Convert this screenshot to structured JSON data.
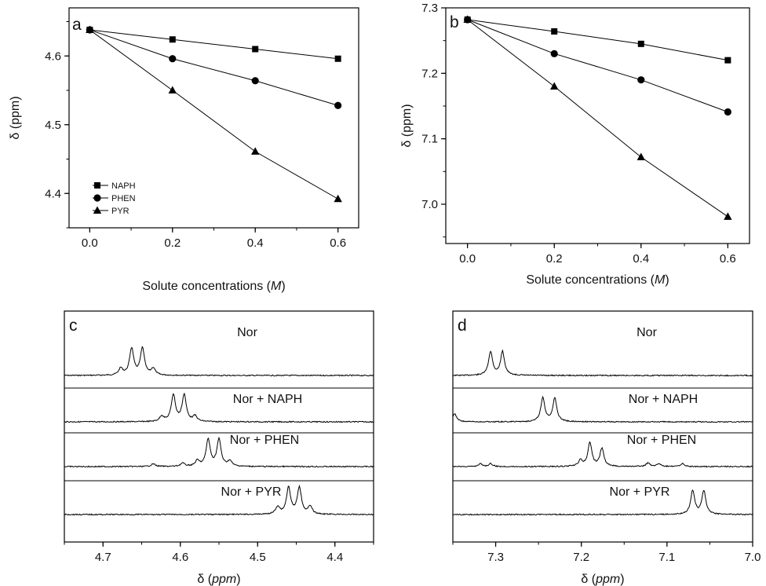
{
  "chart_data": [
    {
      "panel": "a",
      "type": "line",
      "xlabel": "Solute concentrations (M)",
      "ylabel": "δ (ppm)",
      "xlim": [
        -0.05,
        0.65
      ],
      "ylim": [
        4.35,
        4.67
      ],
      "x_ticks": [
        0.0,
        0.2,
        0.4,
        0.6
      ],
      "y_ticks": [
        4.4,
        4.5,
        4.6
      ],
      "x_tick_labels": [
        "0.0",
        "0.2",
        "0.4",
        "0.6"
      ],
      "y_tick_labels": [
        "4.4",
        "4.5",
        "4.6"
      ],
      "legend": "upper-left-middle",
      "x": [
        0.0,
        0.2,
        0.4,
        0.6
      ],
      "series": [
        {
          "name": "NAPH",
          "marker": "square",
          "values": [
            4.638,
            4.624,
            4.61,
            4.596
          ]
        },
        {
          "name": "PHEN",
          "marker": "circle",
          "values": [
            4.638,
            4.596,
            4.564,
            4.528
          ]
        },
        {
          "name": "PYR",
          "marker": "triangle",
          "values": [
            4.638,
            4.55,
            4.461,
            4.392
          ]
        }
      ]
    },
    {
      "panel": "b",
      "type": "line",
      "xlabel": "Solute concentrations (M)",
      "ylabel": "δ (ppm)",
      "xlim": [
        -0.05,
        0.65
      ],
      "ylim": [
        6.94,
        7.3
      ],
      "x_ticks": [
        0.0,
        0.2,
        0.4,
        0.6
      ],
      "y_ticks": [
        7.0,
        7.1,
        7.2,
        7.3
      ],
      "x_tick_labels": [
        "0.0",
        "0.2",
        "0.4",
        "0.6"
      ],
      "y_tick_labels": [
        "7.0",
        "7.1",
        "7.2",
        "7.3"
      ],
      "x": [
        0.0,
        0.2,
        0.4,
        0.6
      ],
      "series": [
        {
          "marker": "square",
          "values": [
            7.282,
            7.264,
            7.245,
            7.22
          ]
        },
        {
          "marker": "circle",
          "values": [
            7.282,
            7.23,
            7.19,
            7.141
          ]
        },
        {
          "marker": "triangle",
          "values": [
            7.282,
            7.18,
            7.072,
            6.981
          ]
        }
      ]
    },
    {
      "panel": "c",
      "type": "spectrum",
      "xlabel": "δ (ppm)",
      "xlim": [
        4.75,
        4.35
      ],
      "x_ticks": [
        4.7,
        4.6,
        4.5,
        4.4
      ],
      "x_tick_labels": [
        "4.7",
        "4.6",
        "4.5",
        "4.4"
      ],
      "traces": [
        {
          "label": "Nor",
          "peaks": [
            {
              "ppm": 4.677,
              "h": 0.25
            },
            {
              "ppm": 4.663,
              "h": 1.0
            },
            {
              "ppm": 4.649,
              "h": 1.0
            },
            {
              "ppm": 4.635,
              "h": 0.25
            }
          ]
        },
        {
          "label": "Nor + NAPH",
          "peaks": [
            {
              "ppm": 4.624,
              "h": 0.2
            },
            {
              "ppm": 4.609,
              "h": 1.0
            },
            {
              "ppm": 4.595,
              "h": 1.0
            },
            {
              "ppm": 4.581,
              "h": 0.2
            }
          ]
        },
        {
          "label": "Nor + PHEN",
          "peaks": [
            {
              "ppm": 4.635,
              "h": 0.1
            },
            {
              "ppm": 4.597,
              "h": 0.12
            },
            {
              "ppm": 4.578,
              "h": 0.2
            },
            {
              "ppm": 4.564,
              "h": 1.0
            },
            {
              "ppm": 4.55,
              "h": 1.0
            },
            {
              "ppm": 4.536,
              "h": 0.2
            }
          ]
        },
        {
          "label": "Nor + PYR",
          "peaks": [
            {
              "ppm": 4.474,
              "h": 0.28
            },
            {
              "ppm": 4.46,
              "h": 1.0
            },
            {
              "ppm": 4.446,
              "h": 1.0
            },
            {
              "ppm": 4.432,
              "h": 0.28
            }
          ]
        }
      ]
    },
    {
      "panel": "d",
      "type": "spectrum",
      "xlabel": "δ (ppm)",
      "xlim": [
        7.35,
        7.0
      ],
      "x_ticks": [
        7.3,
        7.2,
        7.1,
        7.0
      ],
      "x_tick_labels": [
        "7.3",
        "7.2",
        "7.1",
        "7.0"
      ],
      "traces": [
        {
          "label": "Nor",
          "peaks": [
            {
              "ppm": 7.306,
              "h": 1.0
            },
            {
              "ppm": 7.292,
              "h": 1.0
            }
          ]
        },
        {
          "label": "Nor + NAPH",
          "peaks": [
            {
              "ppm": 7.348,
              "h": 0.35
            },
            {
              "ppm": 7.245,
              "h": 1.0
            },
            {
              "ppm": 7.231,
              "h": 1.0
            }
          ]
        },
        {
          "label": "Nor + PHEN",
          "peaks": [
            {
              "ppm": 7.318,
              "h": 0.12
            },
            {
              "ppm": 7.306,
              "h": 0.12
            },
            {
              "ppm": 7.201,
              "h": 0.25
            },
            {
              "ppm": 7.19,
              "h": 1.0
            },
            {
              "ppm": 7.176,
              "h": 0.75
            },
            {
              "ppm": 7.122,
              "h": 0.15
            },
            {
              "ppm": 7.11,
              "h": 0.12
            },
            {
              "ppm": 7.082,
              "h": 0.12
            }
          ]
        },
        {
          "label": "Nor + PYR",
          "peaks": [
            {
              "ppm": 7.07,
              "h": 1.0
            },
            {
              "ppm": 7.057,
              "h": 1.0
            }
          ]
        }
      ]
    }
  ]
}
